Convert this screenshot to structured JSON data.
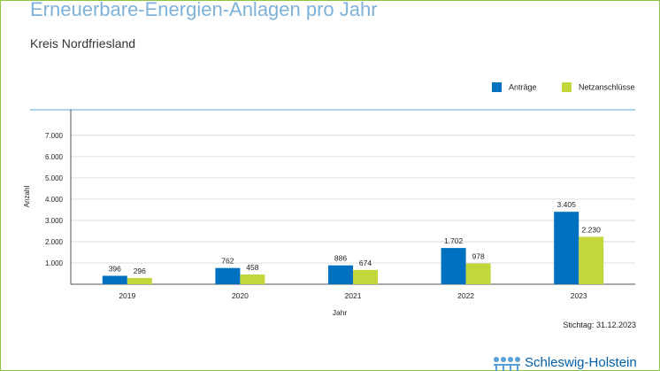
{
  "title": "Erneuerbare-Energien-Anlagen pro Jahr",
  "subtitle": "Kreis Nordfriesland",
  "stichtag": "Stichtag: 31.12.2023",
  "logo_text": "Schleswig-Holstein",
  "colors": {
    "antraege": "#0070c0",
    "netzanschluesse": "#c3d63b",
    "frame": "#8cc63f",
    "title": "#7fb2d9"
  },
  "chart_data": {
    "type": "bar",
    "title": "Erneuerbare-Energien-Anlagen pro Jahr",
    "subtitle": "Kreis Nordfriesland",
    "xlabel": "Jahr",
    "ylabel": "Anzahl",
    "categories": [
      "2019",
      "2020",
      "2021",
      "2022",
      "2023"
    ],
    "series": [
      {
        "name": "Anträge",
        "values": [
          396,
          762,
          886,
          1702,
          3405
        ],
        "labels": [
          "396",
          "762",
          "886",
          "1.702",
          "3.405"
        ]
      },
      {
        "name": "Netzanschlüsse",
        "values": [
          296,
          458,
          674,
          978,
          2230
        ],
        "labels": [
          "296",
          "458",
          "674",
          "978",
          "2.230"
        ]
      }
    ],
    "yticks": [
      1000,
      2000,
      3000,
      4000,
      5000,
      6000,
      7000
    ],
    "ytick_labels": [
      "1.000",
      "2.000",
      "3.000",
      "4.000",
      "5.000",
      "6.000",
      "7.000"
    ],
    "ylim": [
      0,
      8200
    ],
    "grid": true,
    "legend_position": "top-right"
  }
}
